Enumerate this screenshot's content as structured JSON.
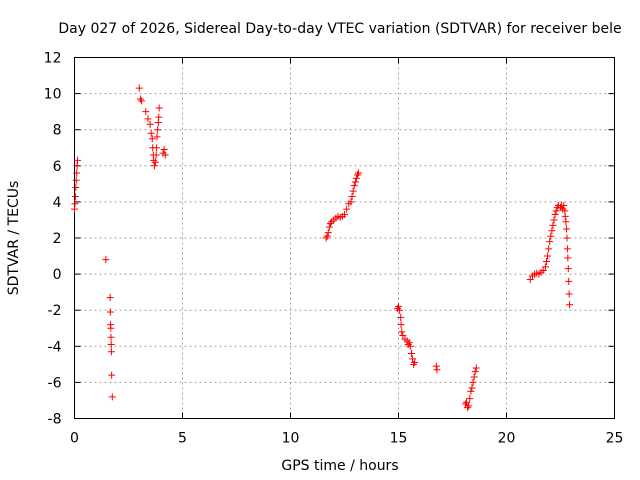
{
  "chart_data": {
    "type": "scatter",
    "title": "Day 027 of 2026, Sidereal Day-to-day VTEC variation (SDTVAR) for receiver bele",
    "xlabel": "GPS time / hours",
    "ylabel": "SDTVAR / TECUs",
    "xlim": [
      0,
      25
    ],
    "ylim": [
      -8,
      12
    ],
    "xticks": [
      0,
      5,
      10,
      15,
      20,
      25
    ],
    "yticks": [
      -8,
      -6,
      -4,
      -2,
      0,
      2,
      4,
      6,
      8,
      10,
      12
    ],
    "grid": true,
    "marker": "+",
    "color": "#ff0000",
    "series": [
      {
        "name": "SDTVAR",
        "points": [
          [
            0.0,
            3.6
          ],
          [
            0.02,
            3.9
          ],
          [
            0.04,
            4.3
          ],
          [
            0.06,
            4.8
          ],
          [
            0.08,
            5.2
          ],
          [
            0.1,
            5.6
          ],
          [
            0.12,
            6.0
          ],
          [
            0.14,
            6.3
          ],
          [
            1.45,
            0.8
          ],
          [
            1.65,
            -1.3
          ],
          [
            1.66,
            -2.1
          ],
          [
            1.67,
            -2.8
          ],
          [
            1.68,
            -3.0
          ],
          [
            1.69,
            -3.5
          ],
          [
            1.7,
            -3.9
          ],
          [
            1.71,
            -4.3
          ],
          [
            1.72,
            -5.6
          ],
          [
            1.75,
            -6.8
          ],
          [
            3.0,
            10.3
          ],
          [
            3.05,
            9.7
          ],
          [
            3.1,
            9.6
          ],
          [
            3.3,
            9.0
          ],
          [
            3.4,
            8.6
          ],
          [
            3.5,
            8.3
          ],
          [
            3.55,
            7.8
          ],
          [
            3.6,
            7.5
          ],
          [
            3.62,
            7.0
          ],
          [
            3.65,
            6.6
          ],
          [
            3.67,
            6.3
          ],
          [
            3.7,
            6.0
          ],
          [
            3.75,
            6.2
          ],
          [
            3.78,
            6.6
          ],
          [
            3.8,
            7.0
          ],
          [
            3.82,
            7.6
          ],
          [
            3.85,
            8.0
          ],
          [
            3.88,
            8.4
          ],
          [
            3.9,
            8.7
          ],
          [
            3.92,
            9.2
          ],
          [
            4.1,
            6.7
          ],
          [
            4.15,
            6.9
          ],
          [
            4.2,
            6.6
          ],
          [
            11.65,
            2.0
          ],
          [
            11.7,
            2.1
          ],
          [
            11.75,
            2.3
          ],
          [
            11.8,
            2.6
          ],
          [
            11.85,
            2.8
          ],
          [
            11.9,
            2.9
          ],
          [
            12.0,
            3.0
          ],
          [
            12.1,
            3.1
          ],
          [
            12.2,
            3.2
          ],
          [
            12.3,
            3.15
          ],
          [
            12.4,
            3.2
          ],
          [
            12.5,
            3.3
          ],
          [
            12.6,
            3.6
          ],
          [
            12.7,
            3.9
          ],
          [
            12.8,
            4.0
          ],
          [
            12.85,
            4.3
          ],
          [
            12.9,
            4.6
          ],
          [
            12.95,
            4.9
          ],
          [
            13.0,
            5.1
          ],
          [
            13.05,
            5.3
          ],
          [
            13.1,
            5.5
          ],
          [
            13.15,
            5.6
          ],
          [
            14.95,
            -1.9
          ],
          [
            15.0,
            -1.8
          ],
          [
            15.05,
            -2.0
          ],
          [
            15.1,
            -2.4
          ],
          [
            15.12,
            -2.8
          ],
          [
            15.15,
            -3.2
          ],
          [
            15.2,
            -3.4
          ],
          [
            15.3,
            -3.6
          ],
          [
            15.4,
            -3.7
          ],
          [
            15.45,
            -3.9
          ],
          [
            15.5,
            -3.8
          ],
          [
            15.55,
            -4.0
          ],
          [
            15.6,
            -4.4
          ],
          [
            15.65,
            -4.7
          ],
          [
            15.7,
            -5.0
          ],
          [
            15.75,
            -4.9
          ],
          [
            16.75,
            -5.1
          ],
          [
            16.78,
            -5.3
          ],
          [
            18.1,
            -7.2
          ],
          [
            18.15,
            -7.1
          ],
          [
            18.2,
            -7.4
          ],
          [
            18.25,
            -7.3
          ],
          [
            18.3,
            -6.9
          ],
          [
            18.35,
            -6.5
          ],
          [
            18.4,
            -6.3
          ],
          [
            18.45,
            -6.0
          ],
          [
            18.5,
            -5.7
          ],
          [
            18.55,
            -5.4
          ],
          [
            18.6,
            -5.2
          ],
          [
            21.1,
            -0.3
          ],
          [
            21.2,
            -0.1
          ],
          [
            21.3,
            0.0
          ],
          [
            21.4,
            0.05
          ],
          [
            21.5,
            0.0
          ],
          [
            21.6,
            0.1
          ],
          [
            21.7,
            0.2
          ],
          [
            21.8,
            0.4
          ],
          [
            21.85,
            0.7
          ],
          [
            21.9,
            1.0
          ],
          [
            21.95,
            1.4
          ],
          [
            22.0,
            1.8
          ],
          [
            22.05,
            2.1
          ],
          [
            22.1,
            2.4
          ],
          [
            22.15,
            2.7
          ],
          [
            22.2,
            3.0
          ],
          [
            22.25,
            3.3
          ],
          [
            22.3,
            3.5
          ],
          [
            22.35,
            3.7
          ],
          [
            22.4,
            3.8
          ],
          [
            22.5,
            3.7
          ],
          [
            22.55,
            3.8
          ],
          [
            22.6,
            3.6
          ],
          [
            22.65,
            3.8
          ],
          [
            22.7,
            3.5
          ],
          [
            22.72,
            3.2
          ],
          [
            22.75,
            2.9
          ],
          [
            22.78,
            2.5
          ],
          [
            22.8,
            2.0
          ],
          [
            22.82,
            1.4
          ],
          [
            22.84,
            0.9
          ],
          [
            22.86,
            0.3
          ],
          [
            22.88,
            -0.4
          ],
          [
            22.9,
            -1.1
          ],
          [
            22.92,
            -1.7
          ]
        ]
      }
    ]
  }
}
